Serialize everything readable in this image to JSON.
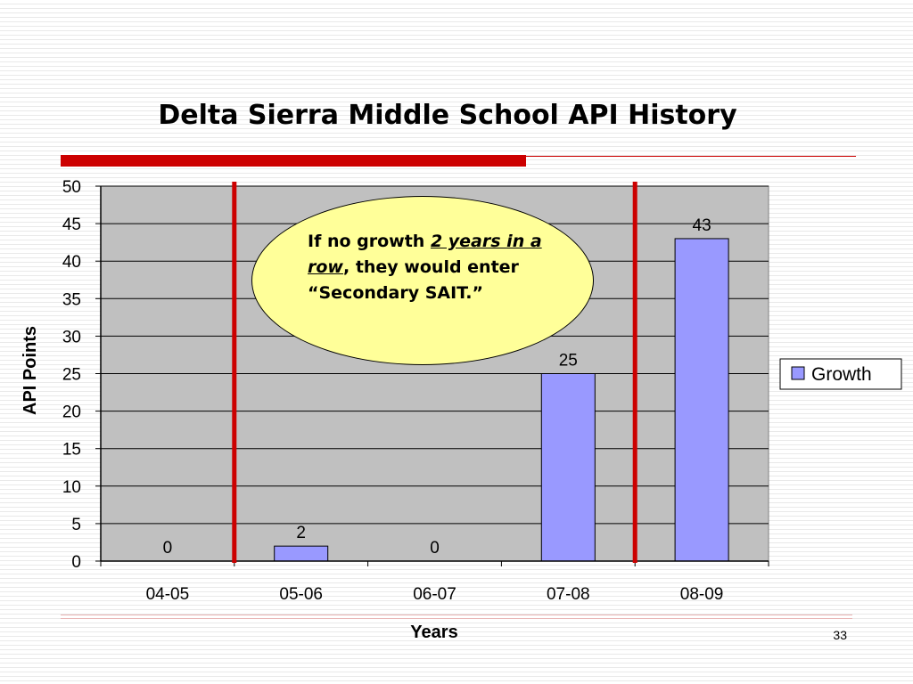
{
  "slide": {
    "page_number": "33"
  },
  "callout": {
    "text_before": "If no growth ",
    "text_emphasis": "2 years in a row",
    "text_after": ", they would enter “Secondary SAIT.”"
  },
  "colors": {
    "accent_red": "#cc0000",
    "bar_fill": "#9999ff",
    "plot_background": "#c0c0c0",
    "callout_fill": "#ffff99"
  },
  "chart_data": {
    "type": "bar",
    "title": "Delta Sierra Middle School API History",
    "xlabel": "Years",
    "ylabel": "API Points",
    "categories": [
      "04-05",
      "05-06",
      "06-07",
      "07-08",
      "08-09"
    ],
    "series": [
      {
        "name": "Growth",
        "values": [
          0,
          2,
          0,
          25,
          43
        ],
        "color": "#9999ff"
      }
    ],
    "data_labels": [
      "0",
      "2",
      "0",
      "25",
      "43"
    ],
    "ylim": [
      0,
      50
    ],
    "yticks": [
      0,
      5,
      10,
      15,
      20,
      25,
      30,
      35,
      40,
      45,
      50
    ],
    "grid": true,
    "legend_position": "right",
    "reference_lines_between": [
      [
        "04-05",
        "05-06"
      ],
      [
        "07-08",
        "08-09"
      ]
    ]
  }
}
